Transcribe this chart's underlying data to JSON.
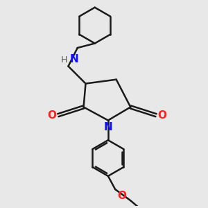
{
  "bg_color": "#e8e8e8",
  "bond_color": "#1a1a1a",
  "N_color": "#1010ff",
  "NH_color": "#1010ff",
  "H_color": "#555555",
  "O_color": "#ff2020",
  "line_width": 1.8,
  "figsize": [
    3.0,
    3.0
  ],
  "dpi": 100,
  "xlim": [
    0,
    10
  ],
  "ylim": [
    0,
    10
  ]
}
